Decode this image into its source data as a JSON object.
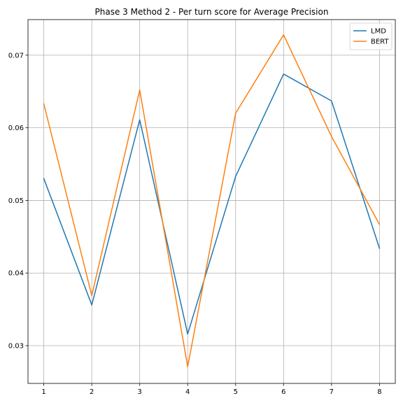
{
  "chart_data": {
    "type": "line",
    "title": "Phase 3 Method 2 - Per turn score for Average Precision",
    "xlabel": "",
    "ylabel": "",
    "x": [
      1,
      2,
      3,
      4,
      5,
      6,
      7,
      8
    ],
    "xticks": [
      "1",
      "2",
      "3",
      "4",
      "5",
      "6",
      "7",
      "8"
    ],
    "yticks": [
      0.03,
      0.04,
      0.05,
      0.06,
      0.07
    ],
    "ytick_labels": [
      "0.03",
      "0.04",
      "0.05",
      "0.06",
      "0.07"
    ],
    "xlim": [
      0.67,
      8.33
    ],
    "ylim": [
      0.0248,
      0.0749
    ],
    "grid": true,
    "legend_position": "top-right",
    "series": [
      {
        "name": "LMD",
        "color": "#1f77b4",
        "values": [
          0.053,
          0.0356,
          0.0611,
          0.0316,
          0.0533,
          0.0674,
          0.0637,
          0.0434
        ]
      },
      {
        "name": "BERT",
        "color": "#ff7f0e",
        "values": [
          0.0633,
          0.0369,
          0.0652,
          0.0271,
          0.062,
          0.0728,
          0.0588,
          0.0467
        ]
      }
    ]
  }
}
